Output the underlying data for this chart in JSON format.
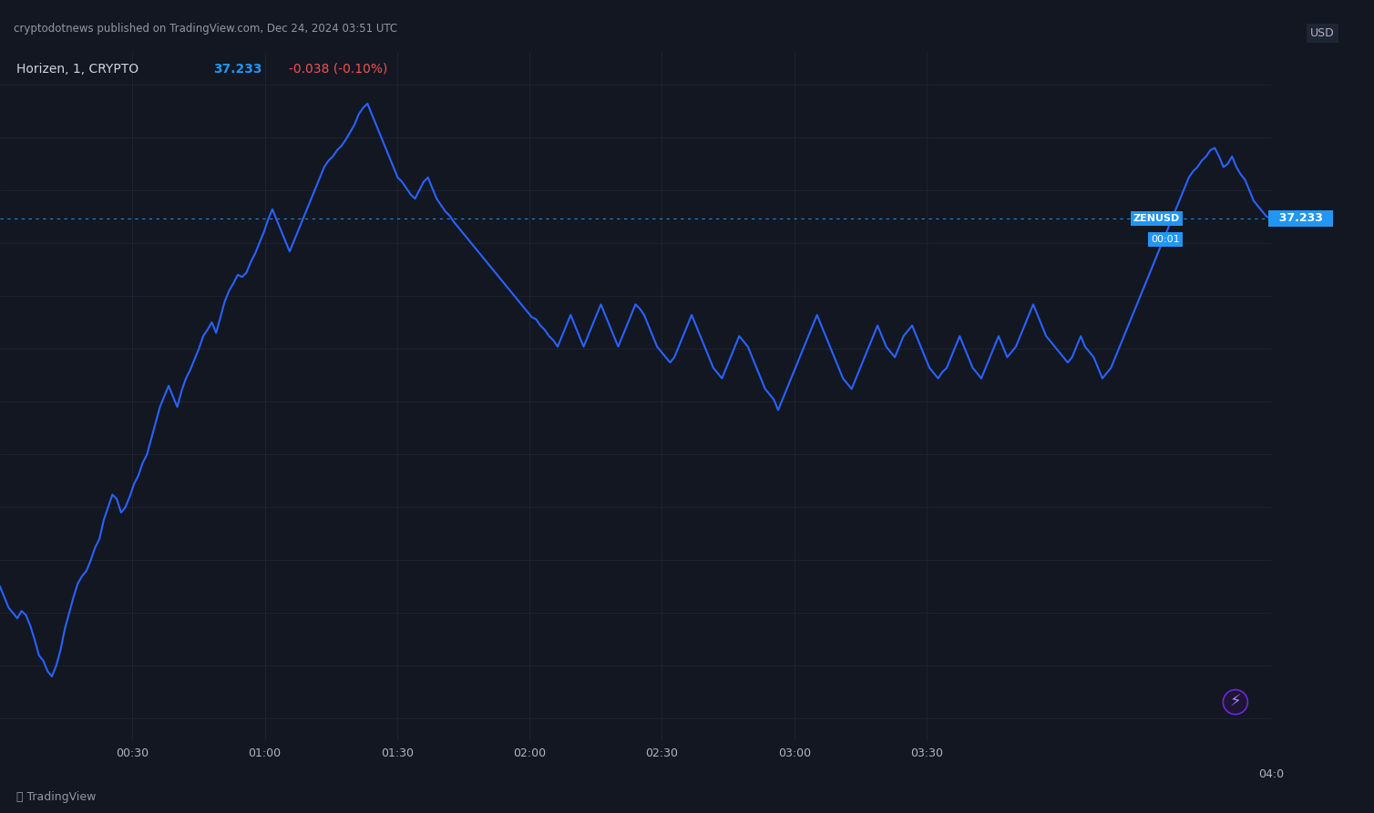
{
  "title_top": "cryptodotnews published on TradingView.com, Dec 24, 2024 03:51 UTC",
  "subtitle": "Horizen, 1, CRYPTO",
  "price": "37.233",
  "change": "-0.038 (-0.10%)",
  "ylabel": "USD",
  "background_color": "#131722",
  "plot_bg_color": "#131722",
  "grid_color": "#1e2535",
  "line_color": "#2962ff",
  "text_color": "#b2b5be",
  "title_color": "#d1d4dc",
  "price_color": "#2196f3",
  "change_color": "#ef5350",
  "ylim": [
    32.3,
    38.8
  ],
  "yticks": [
    32.5,
    33.0,
    33.5,
    34.0,
    34.5,
    35.0,
    35.5,
    36.0,
    36.5,
    37.0,
    37.5,
    38.0,
    38.5
  ],
  "xtick_labels": [
    "00:30",
    "01:00",
    "01:30",
    "02:00",
    "02:30",
    "03:00",
    "03:30",
    "04:0"
  ],
  "current_price_line": 37.233,
  "price_data": [
    33.75,
    33.65,
    33.55,
    33.5,
    33.45,
    33.52,
    33.48,
    33.38,
    33.25,
    33.1,
    33.05,
    32.95,
    32.9,
    33.0,
    33.15,
    33.35,
    33.5,
    33.65,
    33.78,
    33.85,
    33.9,
    34.0,
    34.12,
    34.2,
    34.38,
    34.5,
    34.62,
    34.58,
    34.45,
    34.5,
    34.6,
    34.72,
    34.8,
    34.92,
    35.0,
    35.15,
    35.3,
    35.45,
    35.55,
    35.65,
    35.55,
    35.45,
    35.6,
    35.72,
    35.8,
    35.9,
    36.0,
    36.12,
    36.18,
    36.25,
    36.15,
    36.3,
    36.45,
    36.55,
    36.62,
    36.7,
    36.68,
    36.72,
    36.82,
    36.9,
    37.0,
    37.1,
    37.22,
    37.32,
    37.22,
    37.12,
    37.02,
    36.92,
    37.02,
    37.12,
    37.22,
    37.32,
    37.42,
    37.52,
    37.62,
    37.72,
    37.78,
    37.82,
    37.88,
    37.92,
    37.98,
    38.05,
    38.12,
    38.22,
    38.28,
    38.32,
    38.22,
    38.12,
    38.02,
    37.92,
    37.82,
    37.72,
    37.62,
    37.58,
    37.52,
    37.46,
    37.42,
    37.5,
    37.58,
    37.62,
    37.52,
    37.42,
    37.36,
    37.3,
    37.26,
    37.2,
    37.15,
    37.1,
    37.05,
    37.0,
    36.95,
    36.9,
    36.85,
    36.8,
    36.75,
    36.7,
    36.65,
    36.6,
    36.55,
    36.5,
    36.45,
    36.4,
    36.35,
    36.3,
    36.28,
    36.22,
    36.18,
    36.12,
    36.08,
    36.02,
    36.12,
    36.22,
    36.32,
    36.22,
    36.12,
    36.02,
    36.12,
    36.22,
    36.32,
    36.42,
    36.32,
    36.22,
    36.12,
    36.02,
    36.12,
    36.22,
    36.32,
    36.42,
    36.38,
    36.32,
    36.22,
    36.12,
    36.02,
    35.97,
    35.92,
    35.87,
    35.92,
    36.02,
    36.12,
    36.22,
    36.32,
    36.22,
    36.12,
    36.02,
    35.92,
    35.82,
    35.77,
    35.72,
    35.82,
    35.92,
    36.02,
    36.12,
    36.07,
    36.02,
    35.92,
    35.82,
    35.72,
    35.62,
    35.57,
    35.52,
    35.42,
    35.52,
    35.62,
    35.72,
    35.82,
    35.92,
    36.02,
    36.12,
    36.22,
    36.32,
    36.22,
    36.12,
    36.02,
    35.92,
    35.82,
    35.72,
    35.67,
    35.62,
    35.72,
    35.82,
    35.92,
    36.02,
    36.12,
    36.22,
    36.12,
    36.02,
    35.97,
    35.92,
    36.02,
    36.12,
    36.17,
    36.22,
    36.12,
    36.02,
    35.92,
    35.82,
    35.77,
    35.72,
    35.78,
    35.82,
    35.92,
    36.02,
    36.12,
    36.02,
    35.92,
    35.82,
    35.77,
    35.72,
    35.82,
    35.92,
    36.02,
    36.12,
    36.02,
    35.92,
    35.97,
    36.02,
    36.12,
    36.22,
    36.32,
    36.42,
    36.32,
    36.22,
    36.12,
    36.07,
    36.02,
    35.97,
    35.92,
    35.87,
    35.92,
    36.02,
    36.12,
    36.02,
    35.97,
    35.92,
    35.82,
    35.72,
    35.77,
    35.82,
    35.92,
    36.02,
    36.12,
    36.22,
    36.32,
    36.42,
    36.52,
    36.62,
    36.72,
    36.82,
    36.92,
    37.02,
    37.12,
    37.22,
    37.32,
    37.42,
    37.52,
    37.62,
    37.68,
    37.72,
    37.78,
    37.82,
    37.88,
    37.9,
    37.82,
    37.72,
    37.75,
    37.82,
    37.72,
    37.65,
    37.6,
    37.5,
    37.4,
    37.35,
    37.3,
    37.25,
    37.233
  ],
  "xtick_positions_norm": [
    0.1042,
    0.2083,
    0.3125,
    0.4167,
    0.5208,
    0.625,
    0.7292,
    0.9583
  ]
}
